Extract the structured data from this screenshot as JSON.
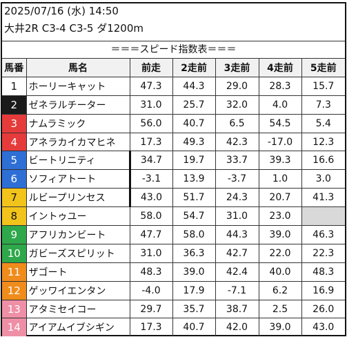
{
  "header": {
    "datetime": "2025/07/16 (水) 14:50",
    "race": "大井2R C3-4 C3-5 ダ1200m"
  },
  "banner": "＝＝＝スピード指数表＝＝＝",
  "columns": [
    "馬番",
    "馬名",
    "前走",
    "2走前",
    "3走前",
    "4走前",
    "5走前"
  ],
  "colors": {
    "waku1": "#ffffff",
    "waku2": "#1a1a1a",
    "waku3": "#e63b3b",
    "waku4": "#2e6fd6",
    "waku5": "#f2c31a",
    "waku6": "#2ea84a",
    "waku7": "#f08c1c",
    "waku8": "#ef8fa6",
    "blank_cell": "#d9d9d9"
  },
  "rows": [
    {
      "no": "1",
      "name": "ホーリーキャット",
      "waku": 1,
      "v": [
        "47.3",
        "44.3",
        "29.0",
        "28.3",
        "15.7"
      ]
    },
    {
      "no": "2",
      "name": "ゼネラルチーター",
      "waku": 2,
      "v": [
        "31.0",
        "25.7",
        "32.0",
        "4.0",
        "7.3"
      ]
    },
    {
      "no": "3",
      "name": "ナムラミック",
      "waku": 3,
      "v": [
        "56.0",
        "40.7",
        "6.5",
        "54.5",
        "5.4"
      ]
    },
    {
      "no": "4",
      "name": "アネラカイカマヒネ",
      "waku": 3,
      "v": [
        "17.3",
        "49.3",
        "42.3",
        "-17.0",
        "12.3"
      ]
    },
    {
      "no": "5",
      "name": "ビートリニティ",
      "waku": 4,
      "v": [
        "34.7",
        "19.7",
        "33.7",
        "39.3",
        "16.6"
      ]
    },
    {
      "no": "6",
      "name": "ソフィアトート",
      "waku": 4,
      "v": [
        "-3.1",
        "13.9",
        "-3.7",
        "1.0",
        "3.0"
      ]
    },
    {
      "no": "7",
      "name": "ルビープリンセス",
      "waku": 5,
      "v": [
        "43.0",
        "51.7",
        "24.3",
        "20.7",
        "41.3"
      ]
    },
    {
      "no": "8",
      "name": "イントゥユー",
      "waku": 5,
      "v": [
        "58.0",
        "54.7",
        "31.0",
        "23.0",
        ""
      ]
    },
    {
      "no": "9",
      "name": "アフリカンビート",
      "waku": 6,
      "v": [
        "47.7",
        "58.0",
        "44.3",
        "39.0",
        "46.3"
      ]
    },
    {
      "no": "10",
      "name": "ガビーズスピリット",
      "waku": 6,
      "v": [
        "31.0",
        "36.3",
        "42.7",
        "22.0",
        "22.3"
      ]
    },
    {
      "no": "11",
      "name": "ザゴート",
      "waku": 7,
      "v": [
        "48.3",
        "39.0",
        "42.4",
        "40.0",
        "48.3"
      ]
    },
    {
      "no": "12",
      "name": "ゲッワイエンタン",
      "waku": 7,
      "v": [
        "-4.0",
        "17.9",
        "-7.1",
        "6.2",
        "16.9"
      ]
    },
    {
      "no": "13",
      "name": "アタミセイコー",
      "waku": 8,
      "v": [
        "29.7",
        "35.7",
        "38.7",
        "2.5",
        "26.0"
      ]
    },
    {
      "no": "14",
      "name": "アイアムイブシギン",
      "waku": 8,
      "v": [
        "17.3",
        "40.7",
        "42.0",
        "39.0",
        "43.0"
      ]
    }
  ]
}
